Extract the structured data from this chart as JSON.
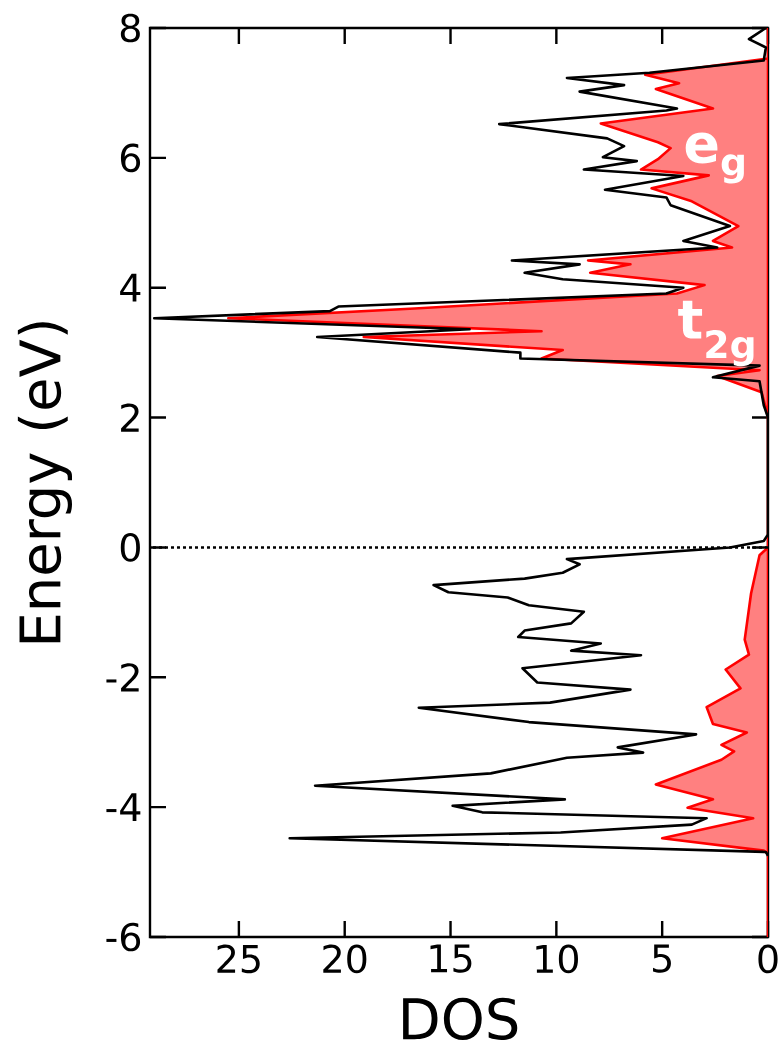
{
  "chart_data": {
    "type": "line",
    "xlabel": "DOS",
    "ylabel": "Energy (eV)",
    "xlim": [
      29.2,
      0
    ],
    "xticks": [
      25,
      20,
      15,
      10,
      5,
      0
    ],
    "ylim": [
      -6,
      8
    ],
    "yticks": [
      -6,
      -4,
      -2,
      0,
      2,
      4,
      6,
      8
    ],
    "series": [
      {
        "color": "#000000",
        "x": [
          0.1,
          0.9,
          0.1,
          0.2,
          5.6,
          9.5,
          6.8,
          8.9,
          4.3,
          4.8,
          12.7,
          7.6,
          6.8,
          7.8,
          6.2,
          8.7,
          4.0,
          7.7,
          4.8,
          4.6,
          1.8,
          4.0,
          2.4,
          12.1,
          8.9,
          11.5,
          9.7,
          4.0,
          4.8,
          20.3,
          20.7,
          29.0,
          14.1,
          21.3,
          11.7,
          11.7,
          0.4,
          2.6,
          0.4,
          0.2,
          0,
          0,
          0.2,
          1.8,
          9.5,
          8.9,
          9.7,
          11.5,
          15.8,
          15.1,
          12.3,
          11.3,
          8.7,
          9.3,
          11.5,
          11.8,
          7.9,
          9.3,
          6.0,
          11.6,
          10.9,
          6.5,
          10.3,
          16.5,
          11.3,
          3.4,
          7.1,
          5.9,
          9.5,
          13.1,
          21.4,
          9.6,
          14.9,
          13.5,
          2.9,
          3.6,
          9.8,
          22.6,
          0.1,
          0
        ],
        "values": [
          8,
          7.83,
          7.7,
          7.5,
          7.31,
          7.23,
          7.12,
          7.02,
          6.76,
          6.73,
          6.52,
          6.3,
          6.18,
          6.01,
          5.95,
          5.82,
          5.72,
          5.51,
          5.39,
          5.27,
          4.95,
          4.72,
          4.62,
          4.42,
          4.36,
          4.23,
          4.13,
          4.0,
          3.91,
          3.71,
          3.64,
          3.53,
          3.36,
          3.24,
          3.0,
          2.91,
          2.8,
          2.62,
          2.56,
          2.19,
          2.0,
          0.2,
          0.1,
          0.0,
          -0.18,
          -0.26,
          -0.39,
          -0.48,
          -0.58,
          -0.69,
          -0.77,
          -0.89,
          -0.99,
          -1.17,
          -1.28,
          -1.38,
          -1.48,
          -1.59,
          -1.66,
          -1.86,
          -2.08,
          -2.19,
          -2.39,
          -2.47,
          -2.69,
          -2.88,
          -3.08,
          -3.16,
          -3.24,
          -3.48,
          -3.67,
          -3.88,
          -3.98,
          -4.08,
          -4.17,
          -4.27,
          -4.39,
          -4.48,
          -4.69,
          -4.75
        ]
      },
      {
        "type": "area",
        "color": "#ff0000",
        "x": [
          0,
          0,
          5.8,
          4.2,
          5.3,
          2.6,
          7.9,
          5.2,
          4.6,
          5.2,
          6.0,
          2.8,
          5.5,
          3.6,
          1.4,
          2.6,
          1.7,
          8.5,
          6.5,
          8.4,
          3.0,
          4.3,
          16.7,
          25.5,
          10.7,
          19.1,
          9.7,
          10.7,
          0.4,
          2.4,
          0.3,
          0.1,
          0,
          0,
          0.4,
          0.8,
          1.1,
          0.9,
          2.0,
          1.3,
          2.9,
          2.6,
          1.0,
          2.2,
          1.6,
          2.2,
          5.3,
          2.6,
          3.8,
          0.7,
          5.0,
          0.2,
          0,
          0
        ],
        "values": [
          8,
          7.53,
          7.28,
          7.15,
          7.06,
          6.76,
          6.53,
          6.24,
          6.15,
          5.98,
          5.82,
          5.73,
          5.53,
          5.33,
          4.95,
          4.72,
          4.62,
          4.42,
          4.36,
          4.23,
          4.04,
          3.91,
          3.68,
          3.53,
          3.33,
          3.24,
          3.04,
          2.91,
          2.73,
          2.64,
          2.39,
          2.14,
          2.0,
          0.0,
          -0.12,
          -0.71,
          -1.42,
          -1.65,
          -1.88,
          -2.17,
          -2.46,
          -2.72,
          -2.85,
          -3.04,
          -3.14,
          -3.27,
          -3.65,
          -3.88,
          -4.01,
          -4.17,
          -4.48,
          -4.67,
          -4.72,
          -6
        ]
      }
    ],
    "ref_lines": [
      {
        "axis": "y",
        "value": 0,
        "color": "#000000",
        "line_style": "dotted"
      }
    ],
    "annotations": [
      "e$_{g}$",
      "t$_{2g}$"
    ]
  }
}
